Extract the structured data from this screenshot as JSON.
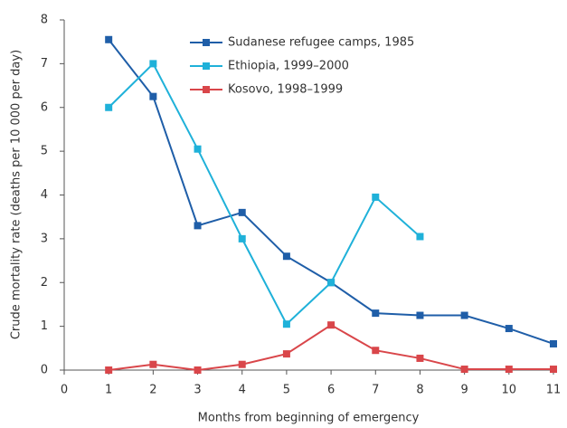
{
  "chart_data": {
    "type": "line",
    "xlabel": "Months from beginning of emergency",
    "ylabel": "Crude mortality rate (deaths per 10 000 per day)",
    "x": [
      1,
      2,
      3,
      4,
      5,
      6,
      7,
      8,
      9,
      10,
      11
    ],
    "series": [
      {
        "name": "Sudanese refugee camps, 1985",
        "color": "#1f5ea8",
        "values": [
          7.55,
          6.25,
          3.3,
          3.6,
          2.6,
          2.0,
          1.3,
          1.25,
          1.25,
          0.95,
          0.6
        ]
      },
      {
        "name": "Ethiopia, 1999–2000",
        "color": "#1fb1d9",
        "values": [
          6.0,
          7.0,
          5.05,
          3.0,
          1.05,
          2.0,
          3.95,
          3.05,
          null,
          null,
          null
        ]
      },
      {
        "name": "Kosovo, 1998–1999",
        "color": "#d9464a",
        "values": [
          0,
          0.13,
          0,
          0.13,
          0.37,
          1.03,
          0.45,
          0.27,
          0.02,
          0.02,
          0.02
        ]
      }
    ],
    "xlim": [
      0,
      11
    ],
    "xticks": [
      0,
      1,
      2,
      3,
      4,
      5,
      6,
      7,
      8,
      9,
      10,
      11
    ],
    "ylim": [
      0,
      8
    ],
    "yticks": [
      0,
      1,
      2,
      3,
      4,
      5,
      6,
      7,
      8
    ],
    "legend": "top"
  }
}
